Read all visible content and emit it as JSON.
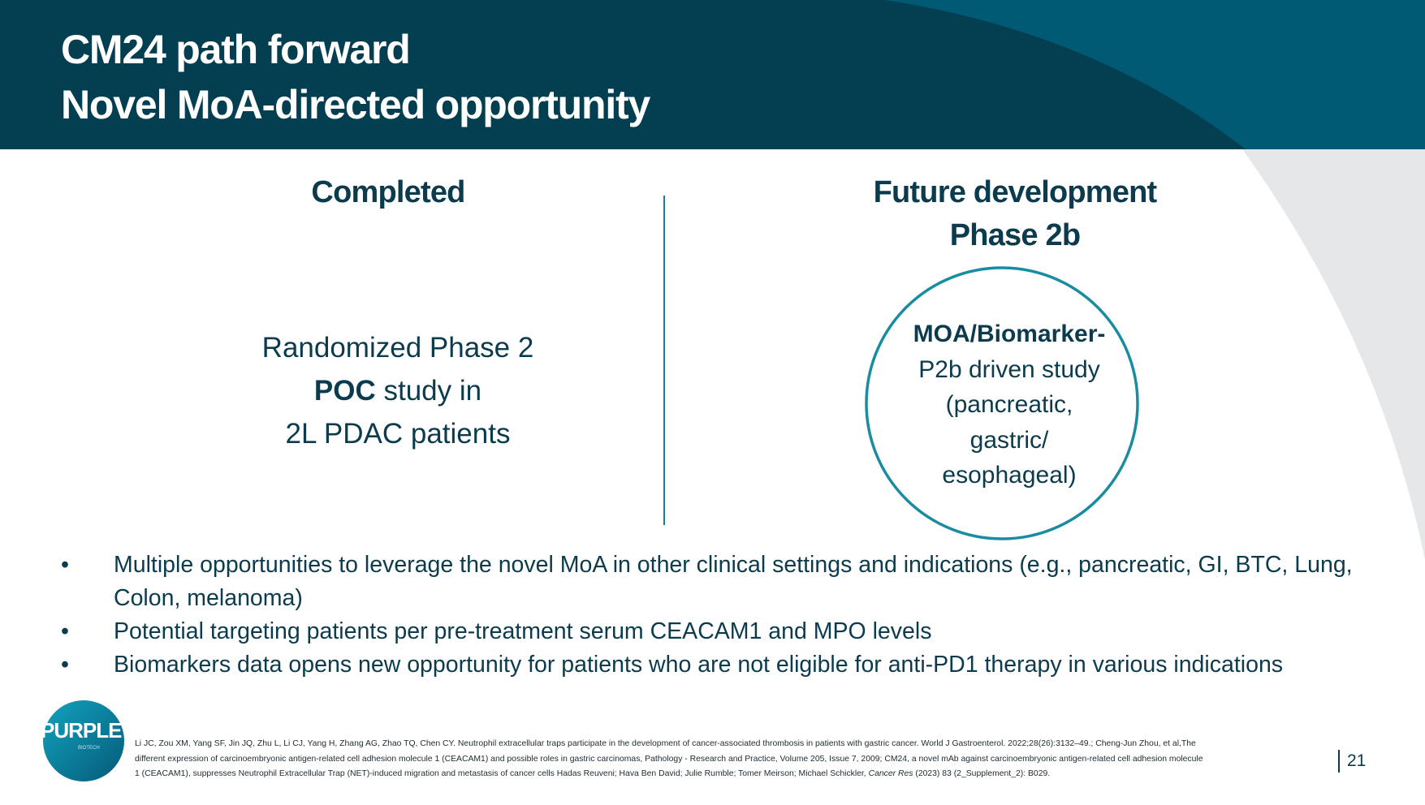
{
  "header": {
    "title_line1": "CM24 path forward",
    "title_line2": "Novel MoA-directed opportunity"
  },
  "left": {
    "heading": "Completed",
    "line1": "Randomized Phase 2",
    "line2_bold": "POC",
    "line2_rest": " study in",
    "line3": "2L PDAC patients"
  },
  "right": {
    "heading_line1": "Future development",
    "heading_line2": "Phase 2b",
    "circle": {
      "line1_bold": "MOA/Biomarker-",
      "line2": "P2b driven study",
      "line3": "(pancreatic,",
      "line4": "gastric/",
      "line5": "esophageal)"
    }
  },
  "bullets": [
    "Multiple opportunities to leverage the novel MoA in other clinical settings and indications (e.g., pancreatic, GI, BTC, Lung, Colon, melanoma)",
    "Potential targeting patients per pre-treatment serum CEACAM1 and MPO levels",
    "Biomarkers data opens new opportunity for patients who are not eligible for anti-PD1 therapy in various indications"
  ],
  "footnote": {
    "line1": "Li JC, Zou XM, Yang SF, Jin JQ, Zhu L, Li CJ, Yang H, Zhang AG, Zhao TQ, Chen CY. Neutrophil extracellular traps participate in the development of cancer-associated thrombosis in patients with gastric cancer. World J Gastroenterol. 2022;28(26):3132–49.; Cheng-Jun Zhou, et al,The",
    "line2": "different expression of carcinoembryonic antigen-related cell adhesion molecule 1 (CEACAM1) and possible roles in gastric carcinomas, Pathology - Research and Practice, Volume 205, Issue 7, 2009; CM24, a novel mAb against carcinoembryonic antigen-related cell adhesion molecule",
    "line3_a": "1 (CEACAM1), suppresses Neutrophil Extracellular Trap (NET)-induced migration and metastasis of cancer cells Hadas Reuveni; Hava Ben David; Julie Rumble; Tomer Meirson; Michael Schickler, ",
    "line3_italic": "Cancer Res",
    "line3_b": " (2023) 83 (2_Supplement_2): B029."
  },
  "page_number": "21",
  "logo": {
    "text": "PURPLE",
    "sub": "BIOTECH"
  },
  "colors": {
    "header_dark": "#033f50",
    "header_light": "#015a73",
    "text": "#0b3b4c",
    "accent": "#1a8ca2",
    "gray": "#e6e7e9"
  }
}
